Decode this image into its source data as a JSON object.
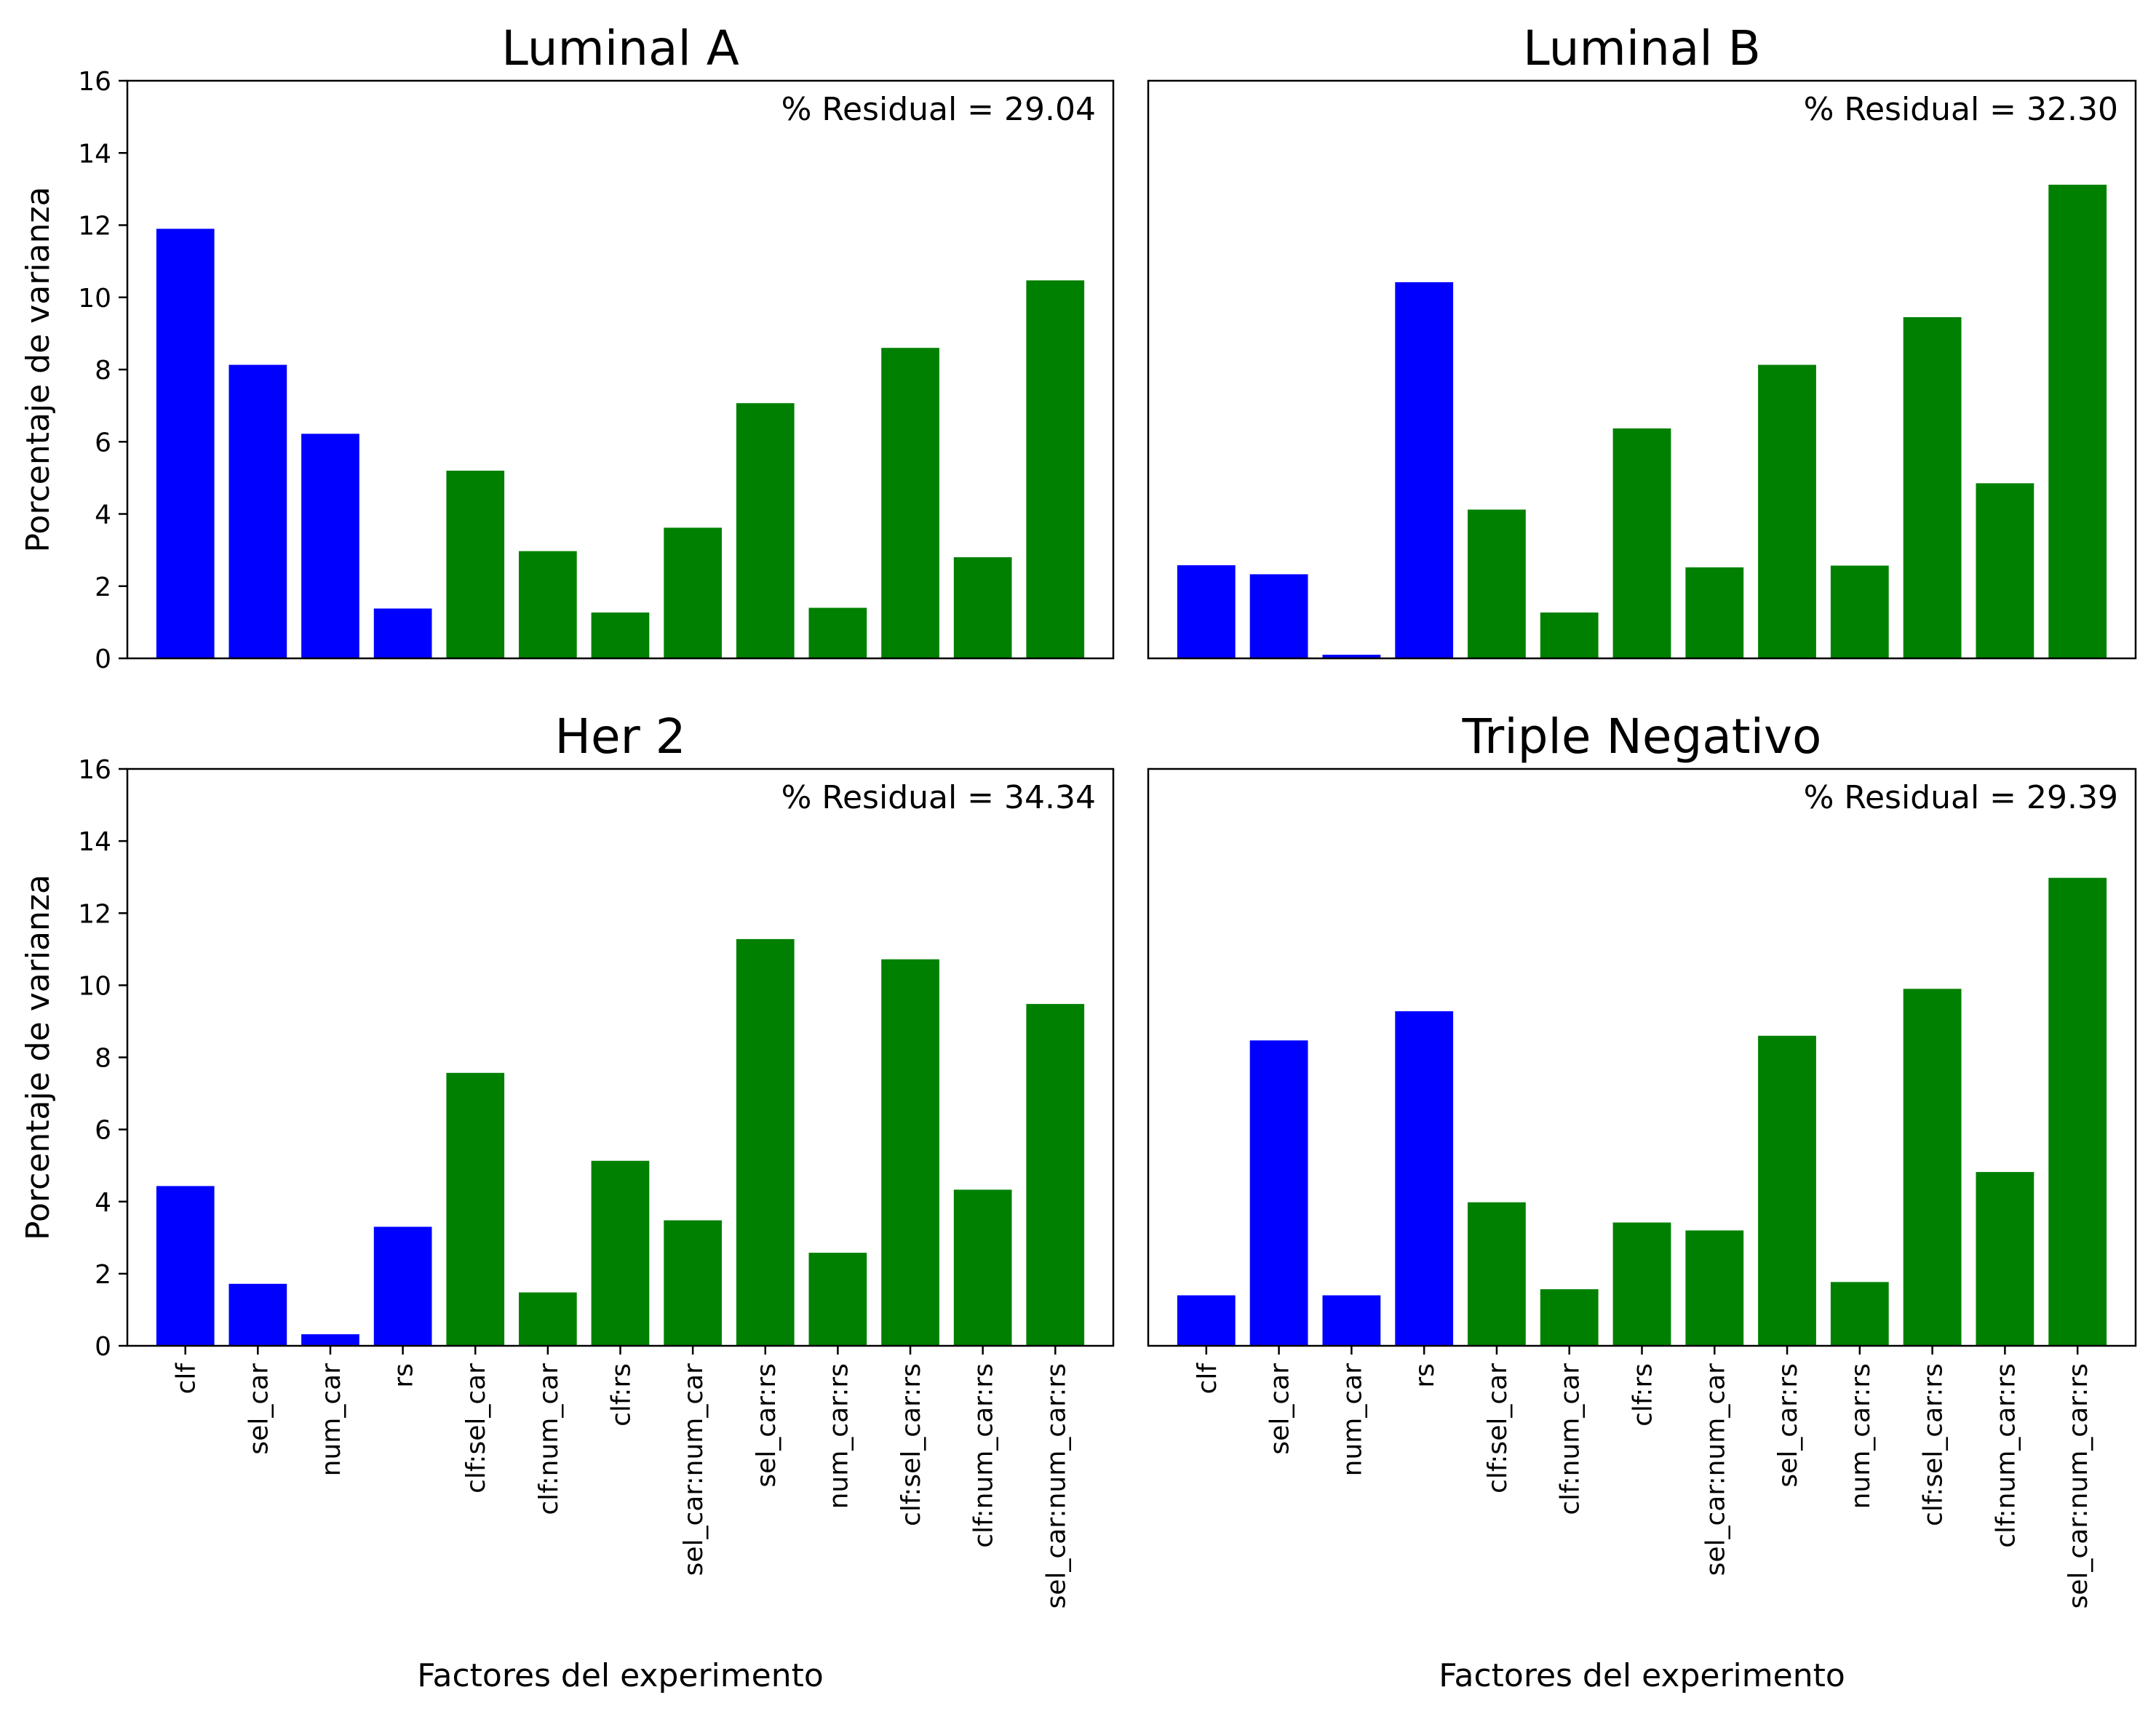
{
  "colors": {
    "main_effect": "#0000ff",
    "interaction": "#008000",
    "axis": "#000000"
  },
  "chart_data": [
    {
      "type": "bar",
      "title": "Luminal A",
      "annotation": "% Residual = 29.04",
      "xlabel": "",
      "ylabel": "Porcentaje de varianza",
      "ylim": [
        0,
        16
      ],
      "yticks": [
        "0",
        "2",
        "4",
        "6",
        "8",
        "10",
        "12",
        "14",
        "16"
      ],
      "categories": [
        "clf",
        "sel_car",
        "num_car",
        "rs",
        "clf:sel_car",
        "clf:num_car",
        "clf:rs",
        "sel_car:num_car",
        "sel_car:rs",
        "num_car:rs",
        "clf:sel_car:rs",
        "clf:num_car:rs",
        "sel_car:num_car:rs"
      ],
      "values": [
        11.9,
        8.13,
        6.22,
        1.38,
        5.2,
        2.97,
        1.27,
        3.62,
        7.07,
        1.4,
        8.6,
        2.8,
        10.47
      ],
      "bar_groups": [
        "main",
        "main",
        "main",
        "main",
        "interaction",
        "interaction",
        "interaction",
        "interaction",
        "interaction",
        "interaction",
        "interaction",
        "interaction",
        "interaction"
      ]
    },
    {
      "type": "bar",
      "title": "Luminal B",
      "annotation": "% Residual = 32.30",
      "xlabel": "",
      "ylabel": "",
      "ylim": [
        0,
        16
      ],
      "categories": [
        "clf",
        "sel_car",
        "num_car",
        "rs",
        "clf:sel_car",
        "clf:num_car",
        "clf:rs",
        "sel_car:num_car",
        "sel_car:rs",
        "num_car:rs",
        "clf:sel_car:rs",
        "clf:num_car:rs",
        "sel_car:num_car:rs"
      ],
      "values": [
        2.58,
        2.33,
        0.1,
        10.42,
        4.12,
        1.27,
        6.37,
        2.52,
        8.13,
        2.57,
        9.45,
        4.85,
        13.12
      ],
      "bar_groups": [
        "main",
        "main",
        "main",
        "main",
        "interaction",
        "interaction",
        "interaction",
        "interaction",
        "interaction",
        "interaction",
        "interaction",
        "interaction",
        "interaction"
      ]
    },
    {
      "type": "bar",
      "title": "Her 2",
      "annotation": "% Residual = 34.34",
      "xlabel": "Factores del experimento",
      "ylabel": "Porcentaje de varianza",
      "ylim": [
        0,
        16
      ],
      "yticks": [
        "0",
        "2",
        "4",
        "6",
        "8",
        "10",
        "12",
        "14",
        "16"
      ],
      "categories": [
        "clf",
        "sel_car",
        "num_car",
        "rs",
        "clf:sel_car",
        "clf:num_car",
        "clf:rs",
        "sel_car:num_car",
        "sel_car:rs",
        "num_car:rs",
        "clf:sel_car:rs",
        "clf:num_car:rs",
        "sel_car:num_car:rs"
      ],
      "values": [
        4.43,
        1.72,
        0.32,
        3.3,
        7.57,
        1.48,
        5.13,
        3.48,
        11.28,
        2.58,
        10.72,
        4.33,
        9.48
      ],
      "bar_groups": [
        "main",
        "main",
        "main",
        "main",
        "interaction",
        "interaction",
        "interaction",
        "interaction",
        "interaction",
        "interaction",
        "interaction",
        "interaction",
        "interaction"
      ]
    },
    {
      "type": "bar",
      "title": "Triple Negativo",
      "annotation": "% Residual = 29.39",
      "xlabel": "Factores del experimento",
      "ylabel": "",
      "ylim": [
        0,
        16
      ],
      "categories": [
        "clf",
        "sel_car",
        "num_car",
        "rs",
        "clf:sel_car",
        "clf:num_car",
        "clf:rs",
        "sel_car:num_car",
        "sel_car:rs",
        "num_car:rs",
        "clf:sel_car:rs",
        "clf:num_car:rs",
        "sel_car:num_car:rs"
      ],
      "values": [
        1.4,
        8.47,
        1.4,
        9.28,
        3.98,
        1.57,
        3.42,
        3.2,
        8.6,
        1.77,
        9.9,
        4.82,
        12.98
      ],
      "bar_groups": [
        "main",
        "main",
        "main",
        "main",
        "interaction",
        "interaction",
        "interaction",
        "interaction",
        "interaction",
        "interaction",
        "interaction",
        "interaction",
        "interaction"
      ]
    }
  ]
}
